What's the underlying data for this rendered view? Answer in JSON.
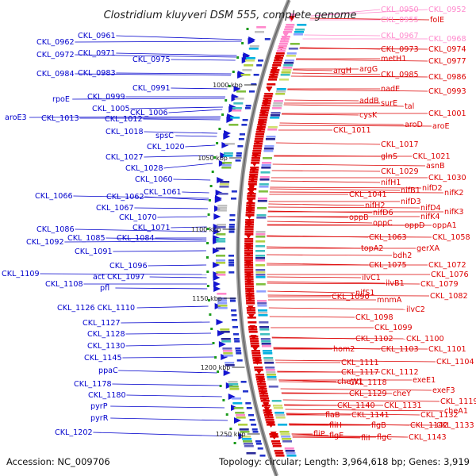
{
  "title": "Clostridium kluyveri DSM 555, complete genome",
  "footer": {
    "accession": "Accession: NC_009706",
    "summary": "Topology: circular; Length: 3,964,618 bp; Genes: 3,919"
  },
  "colors": {
    "left": "#0000cc",
    "right": "#dd0000",
    "pink": "#ff88cc",
    "ring": "#888888"
  },
  "kbp_labels": [
    "1000 kbp",
    "1050 kbp",
    "1100 kbp",
    "1150 kbp",
    "1200 kbp",
    "1250 kbp"
  ],
  "left_labels": [
    "CKL_0961",
    "CKL_0962",
    "CKL_0971",
    "CKL_0972",
    "CKL_0975",
    "CKL_0983",
    "CKL_0984",
    "CKL_0991",
    "CKL_0999",
    "rpoE",
    "CKL_1005",
    "CKL_1006",
    "aroE3",
    "CKL_1013",
    "CKL_1012",
    "CKL_1018",
    "spsC",
    "CKL_1020",
    "CKL_1027",
    "CKL_1028",
    "CKL_1060",
    "CKL_1061",
    "CKL_1066",
    "CKL_1062",
    "CKL_1067",
    "CKL_1070",
    "CKL_1071",
    "CKL_1086",
    "CKL_1084",
    "CKL_1085",
    "CKL_1092",
    "CKL_1091",
    "CKL_1096",
    "CKL_1109",
    "act CKL_1097",
    "CKL_1108",
    "pfl",
    "CKL_1126 CKL_1110",
    "CKL_1127",
    "CKL_1128",
    "CKL_1130",
    "CKL_1145",
    "ppaC",
    "CKL_1178",
    "CKL_1180",
    "pyrP",
    "pyrR",
    "CKL_1202"
  ],
  "right_labels": [
    "CKL_0950",
    "CKL_0952",
    "CKL_0955",
    "folE",
    "CKL_0967",
    "CKL_0968",
    "CKL_0973",
    "CKL_0974",
    "metH1",
    "CKL_0977",
    "argH",
    "argG",
    "CKL_0985",
    "CKL_0986",
    "nadE",
    "CKL_0993",
    "addB",
    "surE",
    "tal",
    "cysK",
    "CKL_1001",
    "aroD",
    "aroE",
    "CKL_1011",
    "CKL_1017",
    "glnS",
    "CKL_1021",
    "asnB",
    "CKL_1029",
    "CKL_1030",
    "nifH1",
    "nifD2",
    "CKL_1041",
    "nifB1",
    "nifK2",
    "nifD3",
    "nifH2",
    "nifD4",
    "nifK3",
    "nifD6",
    "oppB",
    "nifK4",
    "oppC",
    "oppD",
    "oppA1",
    "CKL_1063",
    "CKL_1058",
    "gerXA",
    "topA2",
    "bdh2",
    "CKL_1072",
    "CKL_1075",
    "ilvC1",
    "CKL_1076",
    "ilvB1",
    "CKL_1079",
    "CKL_1090",
    "nifS1",
    "CKL_1082",
    "mnmA",
    "ilvC2",
    "CKL_1098",
    "CKL_1099",
    "CKL_1102",
    "CKL_1100",
    "hom2",
    "CKL_1103",
    "CKL_1101",
    "CKL_1111",
    "CKL_1104",
    "CKL_1117",
    "CKL_1112",
    "cheW1",
    "CKL_1118",
    "exeE1",
    "exeF3",
    "CKL_1129",
    "cheY",
    "CKL_1119",
    "CKL_1140",
    "CKL_1131",
    "cheA1",
    "flaB",
    "CKL_1141",
    "CKL_1132",
    "fliH",
    "flgB",
    "CKL_1142",
    "CKL_1133",
    "fliP",
    "flgE",
    "fliI",
    "flgC",
    "CKL_1143"
  ]
}
